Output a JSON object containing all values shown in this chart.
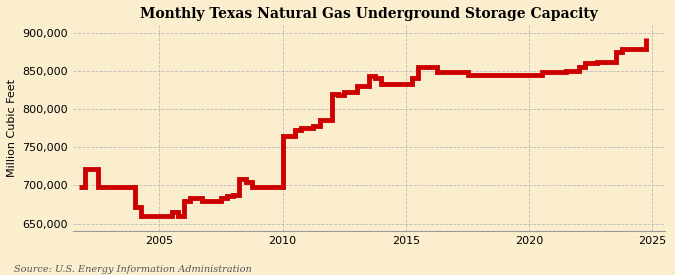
{
  "title": "Monthly Texas Natural Gas Underground Storage Capacity",
  "ylabel": "Million Cubic Feet",
  "source": "Source: U.S. Energy Information Administration",
  "background_color": "#faeece",
  "line_color": "#cc0000",
  "grid_color": "#bbbbbb",
  "ylim": [
    640000,
    910000
  ],
  "yticks": [
    650000,
    700000,
    750000,
    800000,
    850000,
    900000
  ],
  "xlim_start": 2001.5,
  "xlim_end": 2025.5,
  "xticks": [
    2005,
    2010,
    2015,
    2020,
    2025
  ],
  "data_x": [
    2001.75,
    2002.0,
    2002.5,
    2003.0,
    2003.5,
    2004.0,
    2004.25,
    2004.5,
    2005.0,
    2005.5,
    2005.75,
    2006.0,
    2006.25,
    2006.5,
    2006.75,
    2007.0,
    2007.25,
    2007.5,
    2007.75,
    2008.0,
    2008.25,
    2008.5,
    2008.75,
    2009.0,
    2009.5,
    2010.0,
    2010.25,
    2010.5,
    2010.75,
    2011.0,
    2011.25,
    2011.5,
    2011.75,
    2012.0,
    2012.25,
    2012.5,
    2012.75,
    2013.0,
    2013.25,
    2013.5,
    2013.75,
    2014.0,
    2014.5,
    2015.0,
    2015.25,
    2015.5,
    2015.75,
    2016.0,
    2016.25,
    2016.5,
    2017.0,
    2017.5,
    2018.0,
    2018.5,
    2019.0,
    2019.5,
    2020.0,
    2020.5,
    2021.0,
    2021.5,
    2022.0,
    2022.25,
    2022.5,
    2022.75,
    2023.0,
    2023.5,
    2023.75,
    2024.0,
    2024.5,
    2024.75
  ],
  "data_y": [
    698000,
    722000,
    698000,
    698000,
    698000,
    672000,
    660000,
    660000,
    660000,
    665000,
    660000,
    680000,
    683000,
    683000,
    680000,
    680000,
    680000,
    683000,
    686000,
    688000,
    708000,
    705000,
    698000,
    698000,
    698000,
    765000,
    765000,
    772000,
    775000,
    775000,
    778000,
    785000,
    785000,
    820000,
    818000,
    822000,
    822000,
    830000,
    830000,
    843000,
    840000,
    833000,
    833000,
    833000,
    840000,
    855000,
    855000,
    855000,
    848000,
    848000,
    848000,
    845000,
    845000,
    845000,
    845000,
    845000,
    845000,
    848000,
    848000,
    850000,
    855000,
    860000,
    860000,
    862000,
    862000,
    875000,
    878000,
    878000,
    878000,
    893000
  ],
  "linewidth": 3.5
}
